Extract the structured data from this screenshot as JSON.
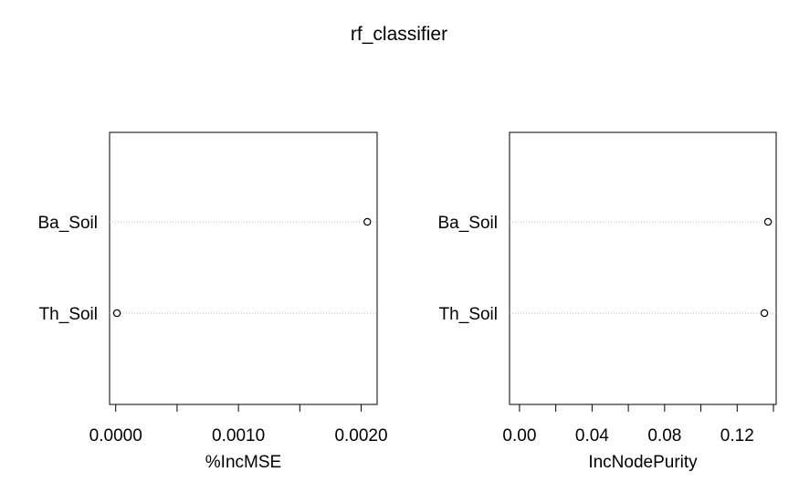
{
  "title": "rf_classifier",
  "chart_data": [
    {
      "type": "scatter",
      "panel": "left",
      "xlabel": "%IncMSE",
      "ylabel": "",
      "xlim": [
        -5e-05,
        0.00213
      ],
      "xticks": [
        0,
        0.0005,
        0.001,
        0.0015,
        0.002
      ],
      "xtick_labels": [
        "0.0000",
        "",
        "0.0010",
        "",
        "0.0020"
      ],
      "categories": [
        "Ba_Soil",
        "Th_Soil"
      ],
      "values": [
        0.00205,
        1e-05
      ],
      "grid": "dotted horizontal guides",
      "legend": "none"
    },
    {
      "type": "scatter",
      "panel": "right",
      "xlabel": "IncNodePurity",
      "ylabel": "",
      "xlim": [
        -0.0055,
        0.1415
      ],
      "xticks": [
        0,
        0.02,
        0.04,
        0.06,
        0.08,
        0.1,
        0.12,
        0.14
      ],
      "xtick_labels": [
        "0.00",
        "",
        "0.04",
        "",
        "0.08",
        "",
        "0.12",
        ""
      ],
      "categories": [
        "Ba_Soil",
        "Th_Soil"
      ],
      "values": [
        0.137,
        0.135
      ],
      "grid": "dotted horizontal guides",
      "legend": "none"
    }
  ]
}
